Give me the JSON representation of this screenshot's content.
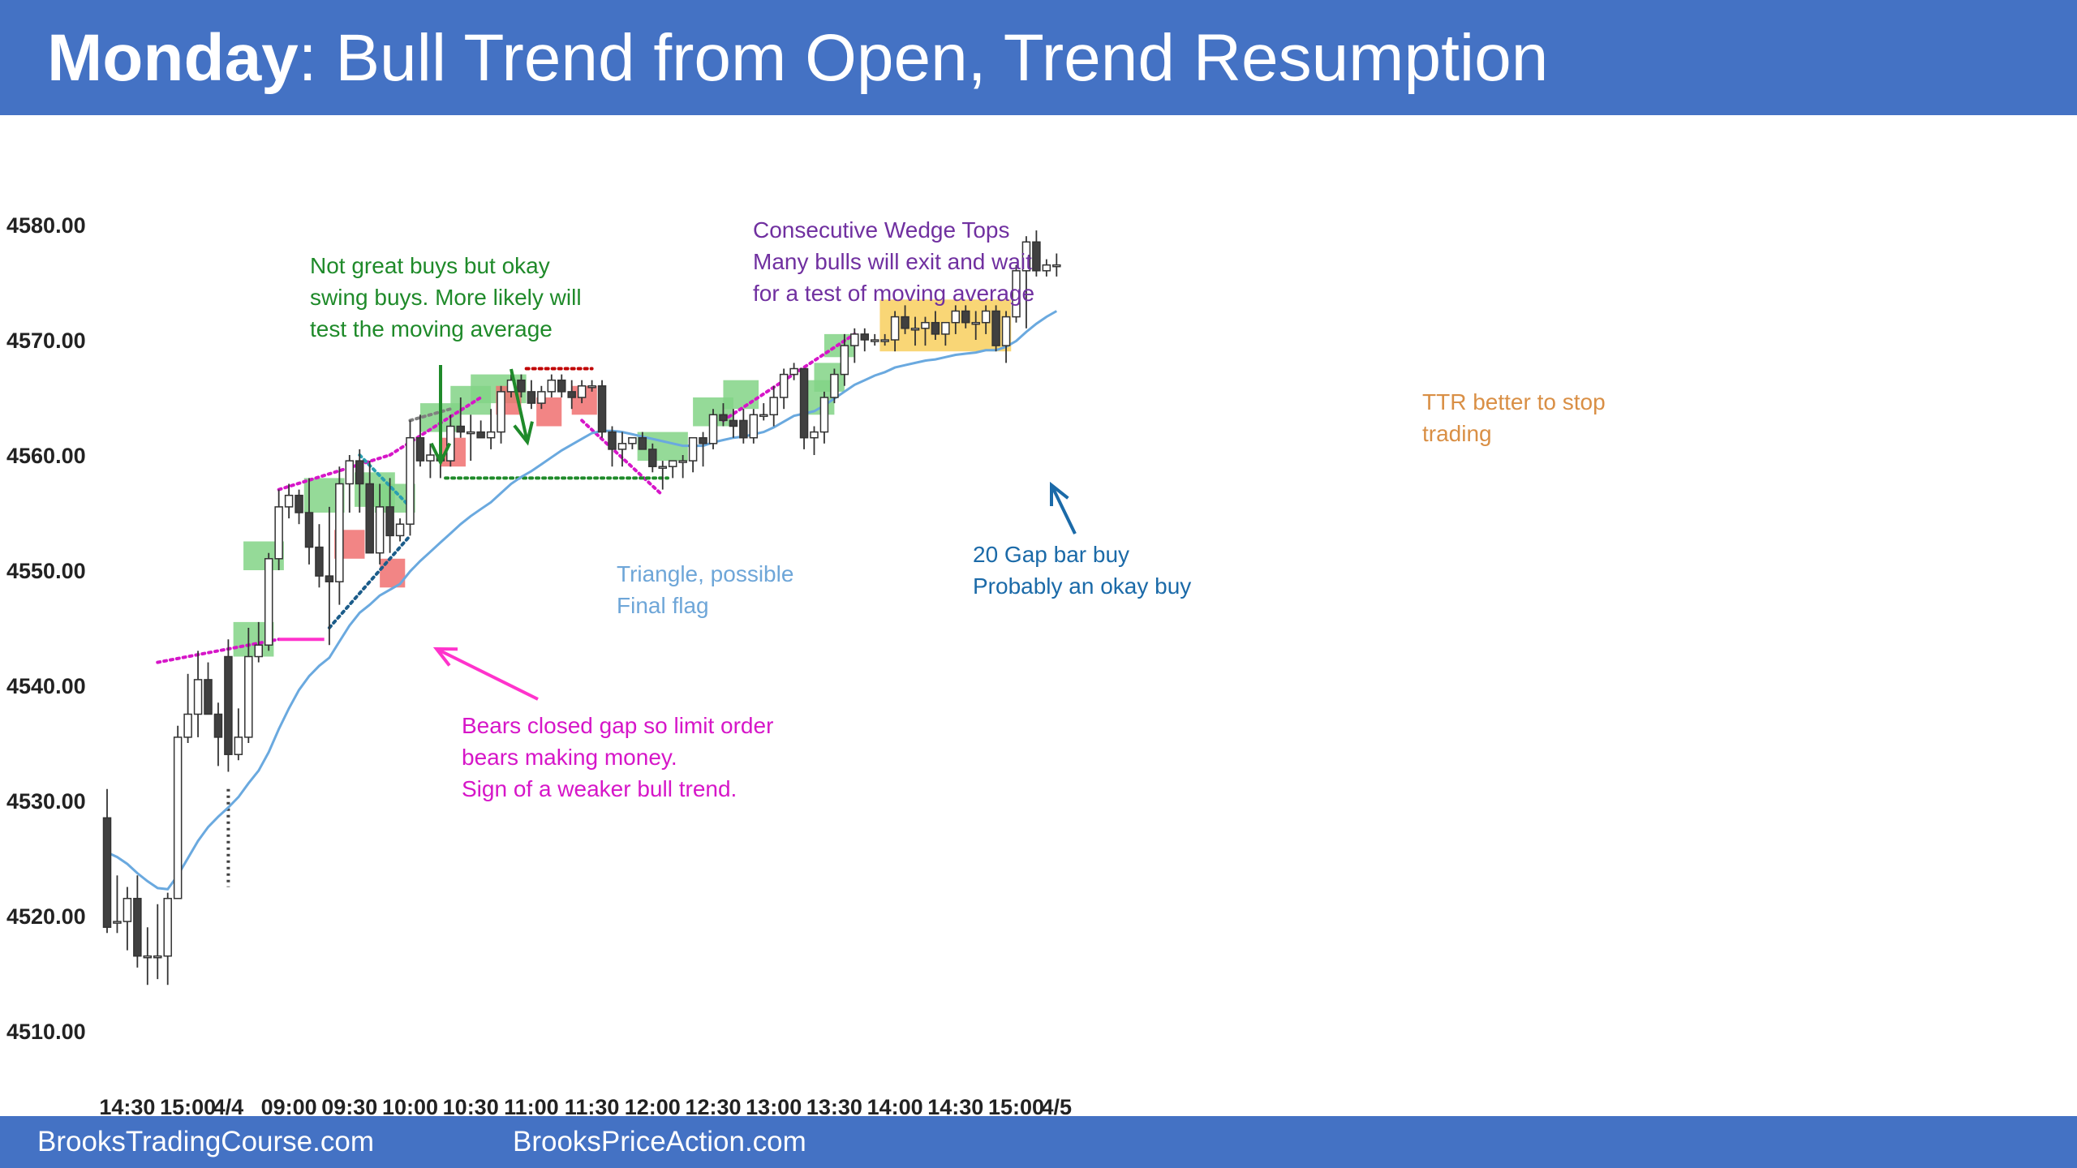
{
  "header": {
    "title_bold": "Monday",
    "title_rest": ": Bull Trend from Open, Trend Resumption",
    "background": "#4472c4"
  },
  "footer": {
    "left_link": "BrooksTradingCourse.com",
    "right_link": "BrooksPriceAction.com"
  },
  "chart_data": {
    "type": "candlestick",
    "ylim": [
      4510,
      4580
    ],
    "y_ticks": [
      {
        "v": 4580,
        "label": "4580.00"
      },
      {
        "v": 4570,
        "label": "4570.00"
      },
      {
        "v": 4560,
        "label": "4560.00"
      },
      {
        "v": 4550,
        "label": "4550.00"
      },
      {
        "v": 4540,
        "label": "4540.00"
      },
      {
        "v": 4530,
        "label": "4530.00"
      },
      {
        "v": 4520,
        "label": "4520.00"
      },
      {
        "v": 4510,
        "label": "4510.00"
      }
    ],
    "x_ticks": [
      {
        "i": 2,
        "label": "14:30"
      },
      {
        "i": 8,
        "label": "15:00"
      },
      {
        "i": 12,
        "label": "4/4"
      },
      {
        "i": 18,
        "label": "09:00"
      },
      {
        "i": 24,
        "label": "09:30"
      },
      {
        "i": 30,
        "label": "10:00"
      },
      {
        "i": 36,
        "label": "10:30"
      },
      {
        "i": 42,
        "label": "11:00"
      },
      {
        "i": 48,
        "label": "11:30"
      },
      {
        "i": 54,
        "label": "12:00"
      },
      {
        "i": 60,
        "label": "12:30"
      },
      {
        "i": 66,
        "label": "13:00"
      },
      {
        "i": 72,
        "label": "13:30"
      },
      {
        "i": 78,
        "label": "14:00"
      },
      {
        "i": 84,
        "label": "14:30"
      },
      {
        "i": 90,
        "label": "15:00"
      },
      {
        "i": 94,
        "label": "4/5"
      }
    ],
    "candles": [
      [
        4528.5,
        4531,
        4518.5,
        4519
      ],
      [
        4519.5,
        4523.5,
        4518.5,
        4519.5
      ],
      [
        4519.5,
        4522.5,
        4517,
        4521.5
      ],
      [
        4521.5,
        4523.5,
        4515.5,
        4516.5
      ],
      [
        4516.5,
        4519,
        4514,
        4516.5
      ],
      [
        4516.5,
        4521,
        4514.5,
        4516.5
      ],
      [
        4516.5,
        4522,
        4514,
        4521.5
      ],
      [
        4521.5,
        4536.5,
        4521.5,
        4535.5
      ],
      [
        4535.5,
        4541,
        4535,
        4537.5
      ],
      [
        4537.5,
        4543,
        4535.5,
        4540.5
      ],
      [
        4540.5,
        4542,
        4537.5,
        4537.5
      ],
      [
        4537.5,
        4538.5,
        4533,
        4535.5
      ],
      [
        4542.5,
        4544,
        4532.5,
        4534
      ],
      [
        4534,
        4538,
        4533.5,
        4535.5
      ],
      [
        4535.5,
        4545,
        4535,
        4542.5
      ],
      [
        4542.5,
        4545.5,
        4542,
        4543.5
      ],
      [
        4543.5,
        4551.5,
        4543,
        4551
      ],
      [
        4551,
        4557,
        4550,
        4555.5
      ],
      [
        4555.5,
        4557.5,
        4554.5,
        4556.5
      ],
      [
        4556.5,
        4557,
        4554,
        4555
      ],
      [
        4555,
        4558,
        4550.5,
        4552
      ],
      [
        4552,
        4554,
        4548.5,
        4549.5
      ],
      [
        4549.5,
        4555.5,
        4543.5,
        4549
      ],
      [
        4549,
        4559,
        4547,
        4557.5
      ],
      [
        4557.5,
        4560,
        4555,
        4559.5
      ],
      [
        4559.5,
        4560.5,
        4555,
        4557.5
      ],
      [
        4557.5,
        4559.5,
        4551.5,
        4551.5
      ],
      [
        4551.5,
        4557.5,
        4550.5,
        4555.5
      ],
      [
        4555.5,
        4558,
        4551.5,
        4553
      ],
      [
        4553,
        4554.5,
        4552.5,
        4554
      ],
      [
        4554,
        4563,
        4553,
        4561.5
      ],
      [
        4561.5,
        4563.5,
        4559,
        4559.5
      ],
      [
        4559.5,
        4561,
        4558,
        4560
      ],
      [
        4560,
        4561,
        4558,
        4559.5
      ],
      [
        4559.5,
        4563.5,
        4559,
        4562.5
      ],
      [
        4562.5,
        4565,
        4561.5,
        4562
      ],
      [
        4562,
        4563.5,
        4559.5,
        4562
      ],
      [
        4562,
        4563,
        4561.5,
        4561.5
      ],
      [
        4561.5,
        4564,
        4560.5,
        4562
      ],
      [
        4562,
        4566,
        4561,
        4565.5
      ],
      [
        4565.5,
        4567,
        4565,
        4566.5
      ],
      [
        4566.5,
        4567,
        4565,
        4565.5
      ],
      [
        4565.5,
        4566.5,
        4564,
        4564.5
      ],
      [
        4564.5,
        4566,
        4564,
        4565.5
      ],
      [
        4565.5,
        4567,
        4565,
        4566.5
      ],
      [
        4566.5,
        4567,
        4565,
        4565.5
      ],
      [
        4565.5,
        4566.5,
        4564,
        4565
      ],
      [
        4565,
        4566.5,
        4564.5,
        4566
      ],
      [
        4566,
        4566.5,
        4565.5,
        4566
      ],
      [
        4566,
        4566.5,
        4561.5,
        4562
      ],
      [
        4562,
        4562.5,
        4559,
        4560.5
      ],
      [
        4560.5,
        4562,
        4559,
        4561
      ],
      [
        4561,
        4561.5,
        4560.5,
        4561.5
      ],
      [
        4561.5,
        4562,
        4560.5,
        4560.5
      ],
      [
        4560.5,
        4561,
        4558.5,
        4559
      ],
      [
        4559,
        4559.5,
        4557,
        4559
      ],
      [
        4559,
        4559.5,
        4558,
        4559.5
      ],
      [
        4559.5,
        4560,
        4558,
        4559.5
      ],
      [
        4559.5,
        4561.5,
        4558.5,
        4561.5
      ],
      [
        4561.5,
        4562,
        4559,
        4561
      ],
      [
        4561,
        4564,
        4560.5,
        4563.5
      ],
      [
        4563.5,
        4564.5,
        4562.5,
        4563
      ],
      [
        4563,
        4564,
        4561.5,
        4562.5
      ],
      [
        4563,
        4564,
        4561,
        4561.5
      ],
      [
        4561.5,
        4564,
        4561,
        4563.5
      ],
      [
        4563.5,
        4564.5,
        4563,
        4563.5
      ],
      [
        4563.5,
        4566,
        4562.5,
        4565
      ],
      [
        4565,
        4567.5,
        4564,
        4567
      ],
      [
        4567,
        4568,
        4566.5,
        4567.5
      ],
      [
        4567.5,
        4567.5,
        4560.5,
        4561.5
      ],
      [
        4561.5,
        4562.5,
        4560,
        4562
      ],
      [
        4562,
        4565.5,
        4561,
        4565
      ],
      [
        4565,
        4567.5,
        4564.5,
        4567
      ],
      [
        4567,
        4570.5,
        4566,
        4569.5
      ],
      [
        4569.5,
        4571,
        4568,
        4570.5
      ],
      [
        4570.5,
        4571,
        4569,
        4570
      ],
      [
        4570,
        4570.5,
        4569.5,
        4570
      ],
      [
        4570,
        4570.5,
        4569.5,
        4570
      ],
      [
        4570,
        4572.5,
        4569,
        4572
      ],
      [
        4572,
        4573,
        4570.5,
        4571
      ],
      [
        4571,
        4572,
        4569.5,
        4571
      ],
      [
        4571,
        4572,
        4569.5,
        4571.5
      ],
      [
        4571.5,
        4572.5,
        4570,
        4570.5
      ],
      [
        4570.5,
        4571.5,
        4569.5,
        4571.5
      ],
      [
        4571.5,
        4573,
        4570.5,
        4572.5
      ],
      [
        4572.5,
        4573,
        4571,
        4571.5
      ],
      [
        4571.5,
        4572.5,
        4570,
        4571.5
      ],
      [
        4571.5,
        4573,
        4570.5,
        4572.5
      ],
      [
        4572.5,
        4573,
        4569,
        4569.5
      ],
      [
        4569.5,
        4572.5,
        4568,
        4572
      ],
      [
        4572,
        4576.5,
        4571.5,
        4576
      ],
      [
        4576,
        4579,
        4571,
        4578.5
      ],
      [
        4578.5,
        4579.5,
        4575.5,
        4576
      ],
      [
        4576,
        4577,
        4575.5,
        4576.5
      ],
      [
        4576.5,
        4577.5,
        4575.5,
        4576.5
      ]
    ],
    "ema": [
      4525.5,
      4525.1,
      4524.5,
      4523.7,
      4523,
      4522.4,
      4522.3,
      4523.5,
      4525,
      4526.5,
      4527.7,
      4528.6,
      4529.4,
      4530.3,
      4531.5,
      4532.6,
      4534.2,
      4536.2,
      4538,
      4539.6,
      4540.8,
      4541.7,
      4542.4,
      4543.8,
      4545.2,
      4546.3,
      4547,
      4547.8,
      4548.3,
      4548.8,
      4549.9,
      4550.8,
      4551.6,
      4552.4,
      4553.2,
      4554,
      4554.7,
      4555.3,
      4555.9,
      4556.7,
      4557.5,
      4558.1,
      4558.6,
      4559.2,
      4559.8,
      4560.4,
      4560.9,
      4561.4,
      4561.9,
      4562.1,
      4562.1,
      4562,
      4561.8,
      4561.6,
      4561.4,
      4561.2,
      4561,
      4560.8,
      4560.8,
      4560.8,
      4561.1,
      4561.3,
      4561.5,
      4561.6,
      4561.8,
      4562,
      4562.4,
      4562.9,
      4563.4,
      4563.6,
      4563.8,
      4564.3,
      4564.9,
      4565.5,
      4566.1,
      4566.5,
      4566.9,
      4567.2,
      4567.6,
      4567.8,
      4568,
      4568.2,
      4568.3,
      4568.5,
      4568.7,
      4568.8,
      4568.9,
      4569.1,
      4569.1,
      4569.4,
      4569.9,
      4570.7,
      4571.4,
      4572,
      4572.5
    ],
    "annotations": {
      "green_note": "Not great buys but okay\nswing buys. More likely will\ntest the moving average",
      "purple_note": "Consecutive Wedge Tops\nMany bulls will exit and wait\nfor a test of moving average",
      "magenta_note": "Bears closed gap so limit order\nbears making money.\nSign of a weaker bull trend.",
      "triangle_note": "Triangle, possible\nFinal flag",
      "gap_buy_note": "20 Gap bar buy\nProbably an okay buy",
      "ttr_note": "TTR better to stop\ntrading"
    },
    "colors": {
      "bull_body": "#ffffff",
      "bear_body": "#404040",
      "ema": "#6aa9df",
      "buy_box": "#82d486",
      "sell_box": "#f07070",
      "ttr_box": "#f8cf5e",
      "green_text": "#1f8a2a",
      "purple_text": "#7030a0",
      "magenta_text": "#d616c8",
      "light_blue_text": "#6ea6d8",
      "blue_text": "#1b6aa8",
      "orange_text": "#d98f45"
    }
  }
}
